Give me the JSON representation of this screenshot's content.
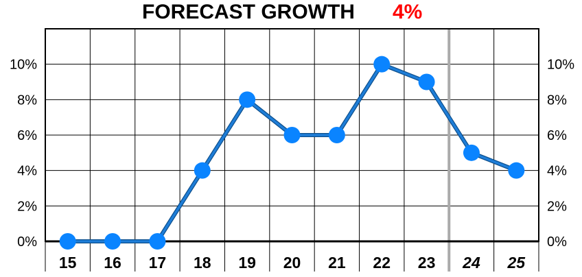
{
  "title": "FORECAST GROWTH",
  "headline_value": "4%",
  "colors": {
    "title": "#000000",
    "headline_value": "#ff0000",
    "line": "#1f7ed8",
    "marker": "#0a84ff",
    "grid": "#000000",
    "forecast_divider": "#aaaaaa"
  },
  "chart_data": {
    "type": "line",
    "categories": [
      "15",
      "16",
      "17",
      "18",
      "19",
      "20",
      "21",
      "22",
      "23",
      "24",
      "25"
    ],
    "forecast_categories": [
      "24",
      "25"
    ],
    "values": [
      0,
      0,
      0,
      4,
      8,
      6,
      6,
      10,
      9,
      5,
      4
    ],
    "y_ticks": [
      "0%",
      "2%",
      "4%",
      "6%",
      "8%",
      "10%"
    ],
    "y_tick_values": [
      0,
      2,
      4,
      6,
      8,
      10
    ],
    "ylim": [
      0,
      12
    ],
    "grid": true,
    "y_axis_both_sides": true
  }
}
